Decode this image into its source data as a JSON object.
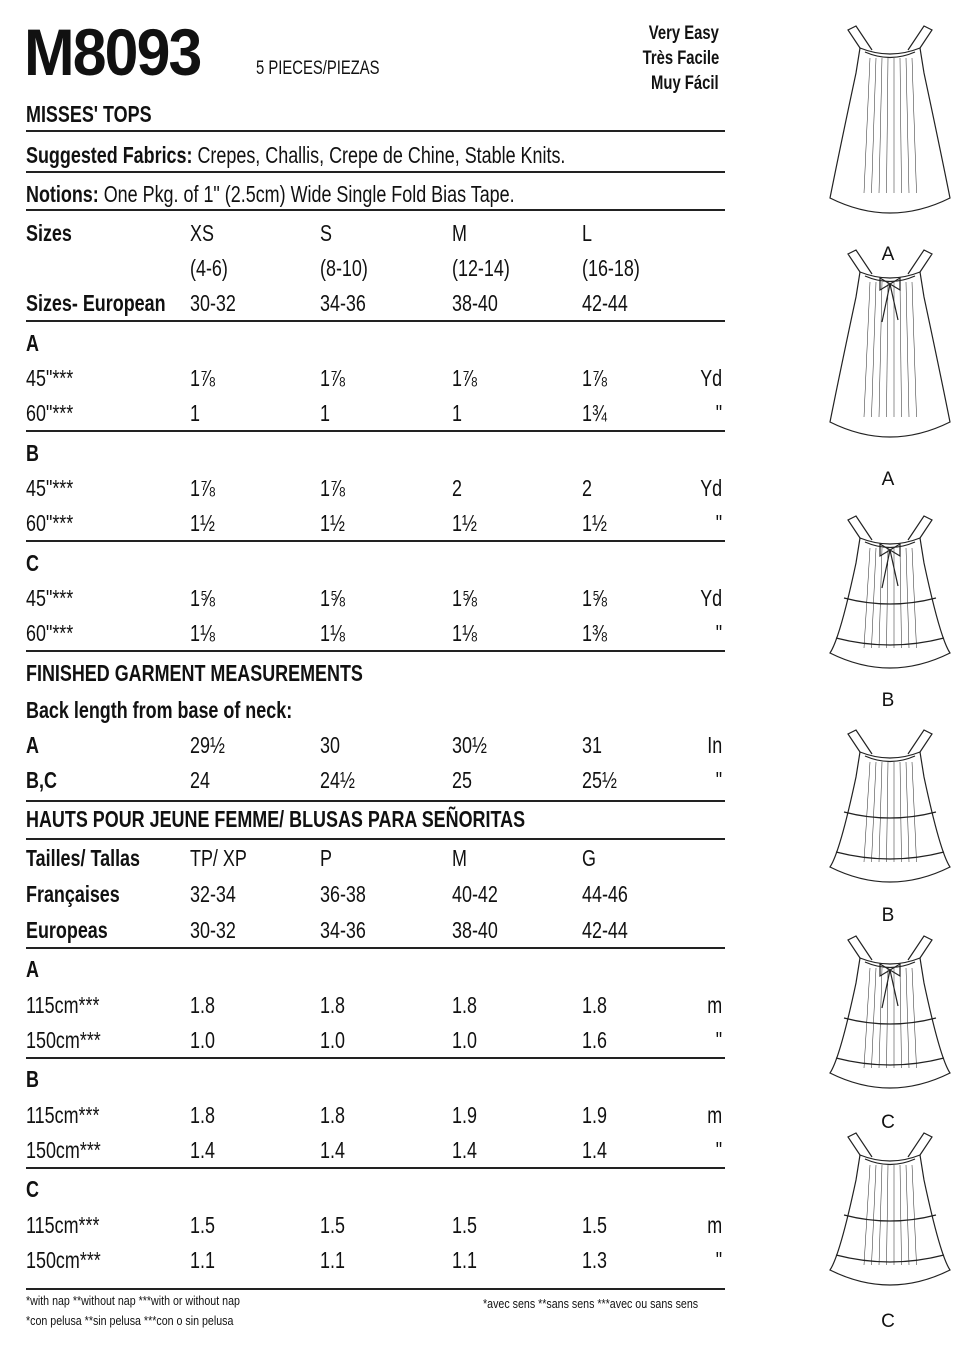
{
  "header": {
    "pattern_number": "M8093",
    "pieces": "5 PIECES/PIEZAS",
    "difficulty": [
      "Very Easy",
      "Très Facile",
      "Muy Fácil"
    ],
    "title": "MISSES' TOPS"
  },
  "fabrics": {
    "label": "Suggested Fabrics:",
    "value": " Crepes, Challis, Crepe de Chine, Stable Knits."
  },
  "notions": {
    "label": "Notions:",
    "value": " One Pkg. of 1\" (2.5cm) Wide Single Fold Bias Tape."
  },
  "english": {
    "size_rows": [
      {
        "label": "Sizes",
        "values": [
          "XS",
          "S",
          "M",
          "L"
        ],
        "bold": true
      },
      {
        "label": "",
        "values": [
          "(4-6)",
          "(8-10)",
          "(12-14)",
          "(16-18)"
        ]
      },
      {
        "label": "Sizes- European",
        "values": [
          "30-32",
          "34-36",
          "38-40",
          "42-44"
        ],
        "bold": true
      }
    ],
    "views": [
      {
        "view": "A",
        "rows": [
          {
            "label": "45\"***",
            "values": [
              "1⅞",
              "1⅞",
              "1⅞",
              "1⅞"
            ],
            "unit": "Yd"
          },
          {
            "label": "60\"***",
            "values": [
              "1",
              "1",
              "1",
              "1¾"
            ],
            "unit": "\""
          }
        ]
      },
      {
        "view": "B",
        "rows": [
          {
            "label": "45\"***",
            "values": [
              "1⅞",
              "1⅞",
              "2",
              "2"
            ],
            "unit": "Yd"
          },
          {
            "label": "60\"***",
            "values": [
              "1½",
              "1½",
              "1½",
              "1½"
            ],
            "unit": "\""
          }
        ]
      },
      {
        "view": "C",
        "rows": [
          {
            "label": "45\"***",
            "values": [
              "1⅝",
              "1⅝",
              "1⅝",
              "1⅝"
            ],
            "unit": "Yd"
          },
          {
            "label": "60\"***",
            "values": [
              "1⅛",
              "1⅛",
              "1⅛",
              "1⅜"
            ],
            "unit": "\""
          }
        ]
      }
    ],
    "finished": {
      "title": "FINISHED GARMENT MEASUREMENTS",
      "subtitle": "Back length from base of neck:",
      "rows": [
        {
          "label": "A",
          "values": [
            "29½",
            "30",
            "30½",
            "31"
          ],
          "unit": "In"
        },
        {
          "label": "B,C",
          "values": [
            "24",
            "24½",
            "25",
            "25½"
          ],
          "unit": "\""
        }
      ]
    }
  },
  "metric": {
    "title": "HAUTS POUR JEUNE FEMME/ BLUSAS PARA SEÑORITAS",
    "size_rows": [
      {
        "label": "Tailles/ Tallas",
        "values": [
          "TP/ XP",
          "P",
          "M",
          "G"
        ],
        "bold": true
      },
      {
        "label": "Françaises",
        "values": [
          "32-34",
          "36-38",
          "40-42",
          "44-46"
        ],
        "bold": true
      },
      {
        "label": "Europeas",
        "values": [
          "30-32",
          "34-36",
          "38-40",
          "42-44"
        ],
        "bold": true
      }
    ],
    "views": [
      {
        "view": "A",
        "rows": [
          {
            "label": "115cm***",
            "values": [
              "1.8",
              "1.8",
              "1.8",
              "1.8"
            ],
            "unit": "m"
          },
          {
            "label": "150cm***",
            "values": [
              "1.0",
              "1.0",
              "1.0",
              "1.6"
            ],
            "unit": "\""
          }
        ]
      },
      {
        "view": "B",
        "rows": [
          {
            "label": "115cm***",
            "values": [
              "1.8",
              "1.8",
              "1.9",
              "1.9"
            ],
            "unit": "m"
          },
          {
            "label": "150cm***",
            "values": [
              "1.4",
              "1.4",
              "1.4",
              "1.4"
            ],
            "unit": "\""
          }
        ]
      },
      {
        "view": "C",
        "rows": [
          {
            "label": "115cm***",
            "values": [
              "1.5",
              "1.5",
              "1.5",
              "1.5"
            ],
            "unit": "m"
          },
          {
            "label": "150cm***",
            "values": [
              "1.1",
              "1.1",
              "1.1",
              "1.3"
            ],
            "unit": "\""
          }
        ]
      }
    ]
  },
  "footnotes": {
    "english": "*with nap   **without nap   ***with or without nap",
    "spanish": "*con pelusa   **sin pelusa   ***con o sin pelusa",
    "french": "*avec sens   **sans sens   ***avec ou sans sens"
  },
  "figures": [
    {
      "label": "A",
      "style": "plain"
    },
    {
      "label": "A",
      "style": "bow"
    },
    {
      "label": "B",
      "style": "tiered-bow"
    },
    {
      "label": "B",
      "style": "tiered"
    },
    {
      "label": "C",
      "style": "tiered-bow"
    },
    {
      "label": "C",
      "style": "tiered"
    }
  ]
}
